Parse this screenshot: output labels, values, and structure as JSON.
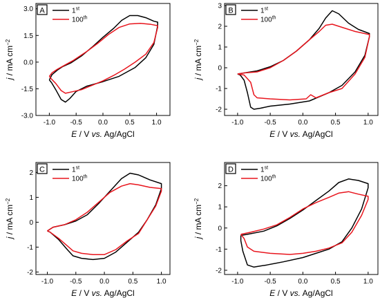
{
  "chart_data": [
    {
      "type": "line",
      "panel_label": "A",
      "xlabel": {
        "var": "E",
        "rest": " / V ",
        "vs": "vs.",
        "ref": " Ag/AgCl"
      },
      "ylabel": {
        "var": "j",
        "rest": " / mA cm",
        "exp": "−2"
      },
      "xlim": [
        -1.25,
        1.25
      ],
      "ylim": [
        -3.0,
        3.3
      ],
      "xticks": [
        -1.0,
        -0.5,
        0.0,
        0.5,
        1.0
      ],
      "xtick_labels": [
        "-1.0",
        "-0.5",
        "0.0",
        "0.5",
        "1.0"
      ],
      "yticks": [
        -3.0,
        -1.5,
        0.0,
        1.5,
        3.0
      ],
      "ytick_labels": [
        "-3.0",
        "-1.5",
        "0.0",
        "1.5",
        "3.0"
      ],
      "legend": "top-left",
      "series": [
        {
          "name_base": "1",
          "name_sup": "st",
          "color": "#000000",
          "points": [
            [
              -1.0,
              -1.0
            ],
            [
              -0.95,
              -0.7
            ],
            [
              -0.85,
              -0.45
            ],
            [
              -0.75,
              -0.25
            ],
            [
              -0.6,
              -0.05
            ],
            [
              -0.4,
              0.35
            ],
            [
              -0.2,
              0.85
            ],
            [
              0.0,
              1.4
            ],
            [
              0.2,
              1.9
            ],
            [
              0.35,
              2.35
            ],
            [
              0.5,
              2.62
            ],
            [
              0.65,
              2.62
            ],
            [
              0.8,
              2.5
            ],
            [
              0.95,
              2.3
            ],
            [
              1.02,
              2.25
            ],
            [
              1.02,
              2.05
            ],
            [
              0.95,
              1.0
            ],
            [
              0.8,
              0.25
            ],
            [
              0.6,
              -0.3
            ],
            [
              0.3,
              -0.8
            ],
            [
              0.0,
              -1.1
            ],
            [
              -0.3,
              -1.35
            ],
            [
              -0.5,
              -1.65
            ],
            [
              -0.62,
              -2.05
            ],
            [
              -0.7,
              -2.25
            ],
            [
              -0.78,
              -2.1
            ],
            [
              -0.88,
              -1.55
            ],
            [
              -0.96,
              -1.15
            ],
            [
              -1.0,
              -1.0
            ]
          ]
        },
        {
          "name_base": "100",
          "name_sup": "th",
          "color": "#e8141c",
          "points": [
            [
              -1.0,
              -0.8
            ],
            [
              -0.95,
              -0.6
            ],
            [
              -0.85,
              -0.4
            ],
            [
              -0.7,
              -0.15
            ],
            [
              -0.55,
              0.1
            ],
            [
              -0.3,
              0.6
            ],
            [
              -0.1,
              1.05
            ],
            [
              0.1,
              1.55
            ],
            [
              0.3,
              1.95
            ],
            [
              0.5,
              2.15
            ],
            [
              0.7,
              2.18
            ],
            [
              0.9,
              2.12
            ],
            [
              1.02,
              2.05
            ],
            [
              1.02,
              1.95
            ],
            [
              0.95,
              1.1
            ],
            [
              0.8,
              0.45
            ],
            [
              0.6,
              0.0
            ],
            [
              0.4,
              -0.4
            ],
            [
              0.2,
              -0.75
            ],
            [
              0.0,
              -1.05
            ],
            [
              -0.2,
              -1.3
            ],
            [
              -0.4,
              -1.55
            ],
            [
              -0.55,
              -1.65
            ],
            [
              -0.7,
              -1.75
            ],
            [
              -0.78,
              -1.6
            ],
            [
              -0.88,
              -1.2
            ],
            [
              -0.96,
              -0.95
            ],
            [
              -1.0,
              -0.8
            ]
          ]
        }
      ]
    },
    {
      "type": "line",
      "panel_label": "B",
      "xlabel": {
        "var": "E",
        "rest": " / V ",
        "vs": "vs.",
        "ref": " Ag/AgCl"
      },
      "ylabel": {
        "var": "j",
        "rest": " / mA cm",
        "exp": "−2"
      },
      "xlim": [
        -1.2,
        1.15
      ],
      "ylim": [
        -2.3,
        3.1
      ],
      "xticks": [
        -1.0,
        -0.5,
        0.0,
        0.5,
        1.0
      ],
      "xtick_labels": [
        "-1.0",
        "-0.5",
        "0.0",
        "0.5",
        "1.0"
      ],
      "yticks": [
        -2,
        -1,
        0,
        1,
        2,
        3
      ],
      "ytick_labels": [
        "-2",
        "-1",
        "0",
        "1",
        "2",
        "3"
      ],
      "legend": "top-left",
      "series": [
        {
          "name_base": "1",
          "name_sup": "st",
          "color": "#000000",
          "points": [
            [
              -1.0,
              -0.3
            ],
            [
              -0.9,
              -0.25
            ],
            [
              -0.7,
              -0.15
            ],
            [
              -0.5,
              0.05
            ],
            [
              -0.3,
              0.35
            ],
            [
              -0.1,
              0.8
            ],
            [
              0.1,
              1.35
            ],
            [
              0.25,
              1.9
            ],
            [
              0.35,
              2.4
            ],
            [
              0.45,
              2.75
            ],
            [
              0.55,
              2.6
            ],
            [
              0.7,
              2.15
            ],
            [
              0.85,
              1.85
            ],
            [
              1.02,
              1.65
            ],
            [
              1.02,
              1.5
            ],
            [
              0.95,
              0.6
            ],
            [
              0.8,
              -0.2
            ],
            [
              0.6,
              -0.85
            ],
            [
              0.4,
              -1.2
            ],
            [
              0.1,
              -1.6
            ],
            [
              -0.2,
              -1.75
            ],
            [
              -0.5,
              -1.85
            ],
            [
              -0.65,
              -1.95
            ],
            [
              -0.75,
              -2.0
            ],
            [
              -0.8,
              -1.9
            ],
            [
              -0.85,
              -1.2
            ],
            [
              -0.9,
              -0.6
            ],
            [
              -0.96,
              -0.35
            ],
            [
              -1.0,
              -0.3
            ]
          ]
        },
        {
          "name_base": "100",
          "name_sup": "th",
          "color": "#e8141c",
          "points": [
            [
              -1.0,
              -0.3
            ],
            [
              -0.9,
              -0.25
            ],
            [
              -0.7,
              -0.2
            ],
            [
              -0.5,
              0.0
            ],
            [
              -0.3,
              0.35
            ],
            [
              -0.1,
              0.8
            ],
            [
              0.1,
              1.35
            ],
            [
              0.25,
              1.75
            ],
            [
              0.35,
              2.05
            ],
            [
              0.45,
              2.1
            ],
            [
              0.6,
              1.95
            ],
            [
              0.8,
              1.75
            ],
            [
              1.02,
              1.6
            ],
            [
              1.02,
              1.5
            ],
            [
              0.95,
              0.5
            ],
            [
              0.8,
              -0.3
            ],
            [
              0.6,
              -1.0
            ],
            [
              0.4,
              -1.2
            ],
            [
              0.2,
              -1.45
            ],
            [
              0.12,
              -1.3
            ],
            [
              0.05,
              -1.5
            ],
            [
              -0.2,
              -1.55
            ],
            [
              -0.5,
              -1.5
            ],
            [
              -0.7,
              -1.45
            ],
            [
              -0.75,
              -1.3
            ],
            [
              -0.8,
              -0.7
            ],
            [
              -0.9,
              -0.35
            ],
            [
              -1.0,
              -0.3
            ]
          ]
        }
      ]
    },
    {
      "type": "line",
      "panel_label": "C",
      "xlabel": {
        "var": "E",
        "rest": " / V ",
        "vs": "vs.",
        "ref": " Ag/AgCl"
      },
      "ylabel": {
        "var": "j",
        "rest": " / mA cm",
        "exp": "−2"
      },
      "xlim": [
        -1.2,
        1.15
      ],
      "ylim": [
        -2.1,
        2.4
      ],
      "xticks": [
        -1.0,
        -0.5,
        0.0,
        0.5,
        1.0
      ],
      "xtick_labels": [
        "-1.0",
        "-0.5",
        "0.0",
        "0.5",
        "1.0"
      ],
      "yticks": [
        -2,
        -1,
        0,
        1,
        2
      ],
      "ytick_labels": [
        "-2",
        "-1",
        "0",
        "1",
        "2"
      ],
      "legend": "top-left",
      "series": [
        {
          "name_base": "1",
          "name_sup": "st",
          "color": "#000000",
          "points": [
            [
              -1.0,
              -0.35
            ],
            [
              -0.9,
              -0.2
            ],
            [
              -0.7,
              -0.1
            ],
            [
              -0.5,
              0.05
            ],
            [
              -0.3,
              0.3
            ],
            [
              -0.1,
              0.75
            ],
            [
              0.1,
              1.25
            ],
            [
              0.3,
              1.75
            ],
            [
              0.45,
              1.97
            ],
            [
              0.6,
              1.9
            ],
            [
              0.8,
              1.7
            ],
            [
              1.0,
              1.55
            ],
            [
              1.0,
              1.35
            ],
            [
              0.9,
              0.7
            ],
            [
              0.75,
              0.1
            ],
            [
              0.6,
              -0.4
            ],
            [
              0.4,
              -0.8
            ],
            [
              0.2,
              -1.2
            ],
            [
              0.0,
              -1.45
            ],
            [
              -0.2,
              -1.5
            ],
            [
              -0.4,
              -1.45
            ],
            [
              -0.55,
              -1.35
            ],
            [
              -0.65,
              -1.1
            ],
            [
              -0.8,
              -0.7
            ],
            [
              -0.95,
              -0.4
            ],
            [
              -1.0,
              -0.35
            ]
          ]
        },
        {
          "name_base": "100",
          "name_sup": "th",
          "color": "#e8141c",
          "points": [
            [
              -1.0,
              -0.35
            ],
            [
              -0.9,
              -0.2
            ],
            [
              -0.7,
              -0.1
            ],
            [
              -0.5,
              0.1
            ],
            [
              -0.3,
              0.4
            ],
            [
              -0.1,
              0.8
            ],
            [
              0.1,
              1.2
            ],
            [
              0.3,
              1.45
            ],
            [
              0.45,
              1.55
            ],
            [
              0.6,
              1.5
            ],
            [
              0.8,
              1.4
            ],
            [
              1.0,
              1.35
            ],
            [
              1.0,
              1.25
            ],
            [
              0.9,
              0.65
            ],
            [
              0.75,
              0.1
            ],
            [
              0.6,
              -0.45
            ],
            [
              0.4,
              -0.75
            ],
            [
              0.2,
              -1.1
            ],
            [
              0.0,
              -1.3
            ],
            [
              -0.2,
              -1.3
            ],
            [
              -0.4,
              -1.25
            ],
            [
              -0.55,
              -1.15
            ],
            [
              -0.65,
              -0.95
            ],
            [
              -0.8,
              -0.65
            ],
            [
              -0.95,
              -0.4
            ],
            [
              -1.0,
              -0.35
            ]
          ]
        }
      ]
    },
    {
      "type": "line",
      "panel_label": "D",
      "xlabel": {
        "var": "E",
        "rest": " / V ",
        "vs": "vs.",
        "ref": " Ag/AgCl"
      },
      "ylabel": {
        "var": "j",
        "rest": " / mA cm",
        "exp": "−2"
      },
      "xlim": [
        -1.2,
        1.15
      ],
      "ylim": [
        -2.2,
        3.1
      ],
      "xticks": [
        -1.0,
        -0.5,
        0.0,
        0.5,
        1.0
      ],
      "xtick_labels": [
        "-1.0",
        "-0.5",
        "0.0",
        "0.5",
        "1.0"
      ],
      "yticks": [
        -2,
        -1,
        0,
        1,
        2
      ],
      "ytick_labels": [
        "-2",
        "-1",
        "0",
        "1",
        "2"
      ],
      "legend": "top-left",
      "series": [
        {
          "name_base": "1",
          "name_sup": "st",
          "color": "#000000",
          "points": [
            [
              -0.95,
              -0.35
            ],
            [
              -0.85,
              -0.3
            ],
            [
              -0.6,
              -0.15
            ],
            [
              -0.4,
              0.1
            ],
            [
              -0.2,
              0.45
            ],
            [
              0.0,
              0.85
            ],
            [
              0.2,
              1.3
            ],
            [
              0.4,
              1.75
            ],
            [
              0.55,
              2.15
            ],
            [
              0.7,
              2.32
            ],
            [
              0.85,
              2.25
            ],
            [
              1.0,
              2.1
            ],
            [
              1.0,
              1.9
            ],
            [
              0.9,
              0.9
            ],
            [
              0.75,
              0.0
            ],
            [
              0.6,
              -0.65
            ],
            [
              0.4,
              -1.0
            ],
            [
              0.2,
              -1.2
            ],
            [
              0.0,
              -1.4
            ],
            [
              -0.3,
              -1.6
            ],
            [
              -0.55,
              -1.75
            ],
            [
              -0.75,
              -1.85
            ],
            [
              -0.85,
              -1.75
            ],
            [
              -0.92,
              -1.1
            ],
            [
              -0.95,
              -0.6
            ],
            [
              -0.95,
              -0.35
            ]
          ]
        },
        {
          "name_base": "100",
          "name_sup": "th",
          "color": "#e8141c",
          "points": [
            [
              -0.95,
              -0.3
            ],
            [
              -0.8,
              -0.2
            ],
            [
              -0.6,
              -0.05
            ],
            [
              -0.4,
              0.15
            ],
            [
              -0.2,
              0.5
            ],
            [
              0.0,
              0.9
            ],
            [
              0.2,
              1.2
            ],
            [
              0.4,
              1.45
            ],
            [
              0.55,
              1.65
            ],
            [
              0.7,
              1.72
            ],
            [
              0.85,
              1.6
            ],
            [
              1.0,
              1.5
            ],
            [
              1.0,
              1.35
            ],
            [
              0.9,
              0.6
            ],
            [
              0.75,
              -0.2
            ],
            [
              0.6,
              -0.7
            ],
            [
              0.4,
              -0.95
            ],
            [
              0.2,
              -1.1
            ],
            [
              0.0,
              -1.2
            ],
            [
              -0.2,
              -1.25
            ],
            [
              -0.5,
              -1.2
            ],
            [
              -0.75,
              -1.1
            ],
            [
              -0.85,
              -0.9
            ],
            [
              -0.9,
              -0.5
            ],
            [
              -0.95,
              -0.3
            ]
          ]
        }
      ]
    }
  ]
}
